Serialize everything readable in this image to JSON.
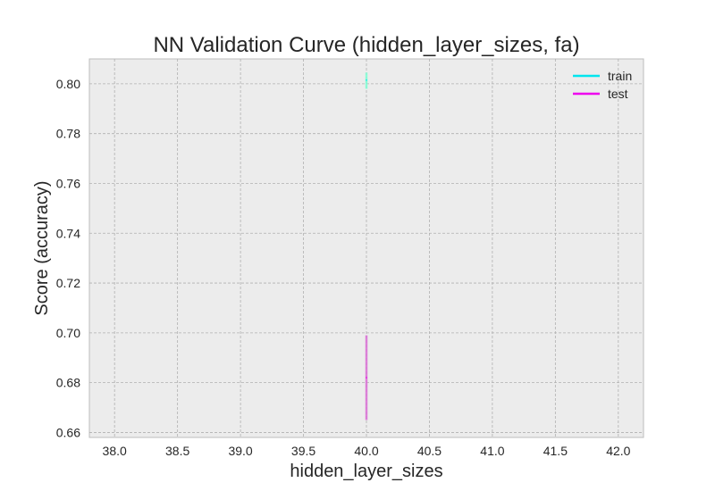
{
  "chart_data": {
    "type": "line",
    "title": "NN Validation Curve (hidden_layer_sizes, fa)",
    "xlabel": "hidden_layer_sizes",
    "ylabel": "Score (accuracy)",
    "xlim": [
      37.8,
      42.2
    ],
    "ylim": [
      0.658,
      0.81
    ],
    "xticks": [
      38.0,
      38.5,
      39.0,
      39.5,
      40.0,
      40.5,
      41.0,
      41.5,
      42.0
    ],
    "yticks": [
      0.66,
      0.68,
      0.7,
      0.72,
      0.74,
      0.76,
      0.78,
      0.8
    ],
    "xtick_labels": [
      "38.0",
      "38.5",
      "39.0",
      "39.5",
      "40.0",
      "40.5",
      "41.0",
      "41.5",
      "42.0"
    ],
    "ytick_labels": [
      "0.66",
      "0.68",
      "0.70",
      "0.72",
      "0.74",
      "0.76",
      "0.78",
      "0.80"
    ],
    "grid": true,
    "legend_position": "top-right",
    "series": [
      {
        "name": "train",
        "color": "#00e5ee",
        "band_color": "#7fffd4",
        "x": [
          40
        ],
        "y": [
          0.8015
        ],
        "y_low": [
          0.798
        ],
        "y_high": [
          0.8045
        ]
      },
      {
        "name": "test",
        "color": "#ee00ee",
        "band_color": "#da70d6",
        "x": [
          40
        ],
        "y": [
          0.682
        ],
        "y_low": [
          0.665
        ],
        "y_high": [
          0.699
        ]
      }
    ]
  }
}
